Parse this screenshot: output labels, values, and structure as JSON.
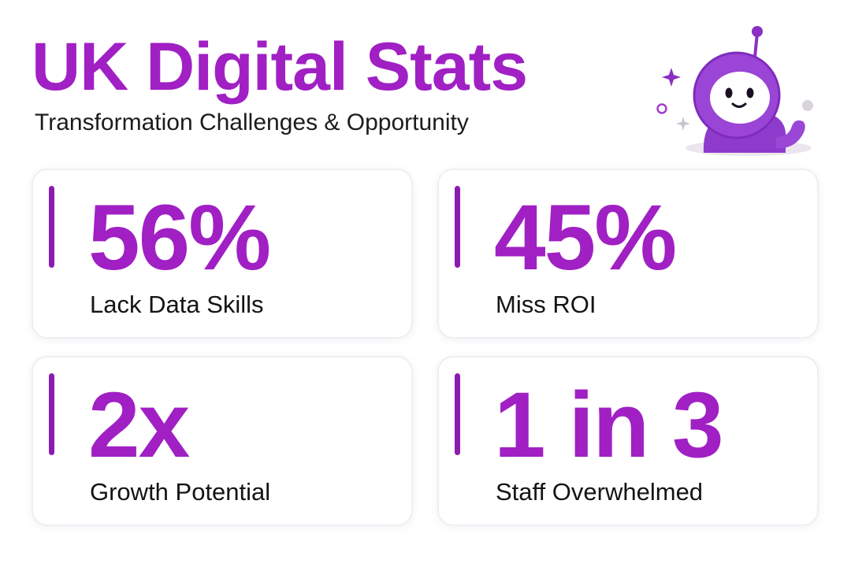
{
  "header": {
    "title": "UK Digital Stats",
    "subtitle": "Transformation Challenges & Opportunity"
  },
  "mascot": {
    "icon": "robot-mascot-icon"
  },
  "theme": {
    "accent": "#a020c4",
    "accent_dark": "#8a1cb0",
    "mascot_purple": "#9a3fd0"
  },
  "stats": [
    {
      "value": "56%",
      "label": "Lack Data Skills"
    },
    {
      "value": "45%",
      "label": "Miss ROI"
    },
    {
      "value": "2x",
      "label": "Growth Potential"
    },
    {
      "value": "1 in 3",
      "label": "Staff Overwhelmed"
    }
  ]
}
